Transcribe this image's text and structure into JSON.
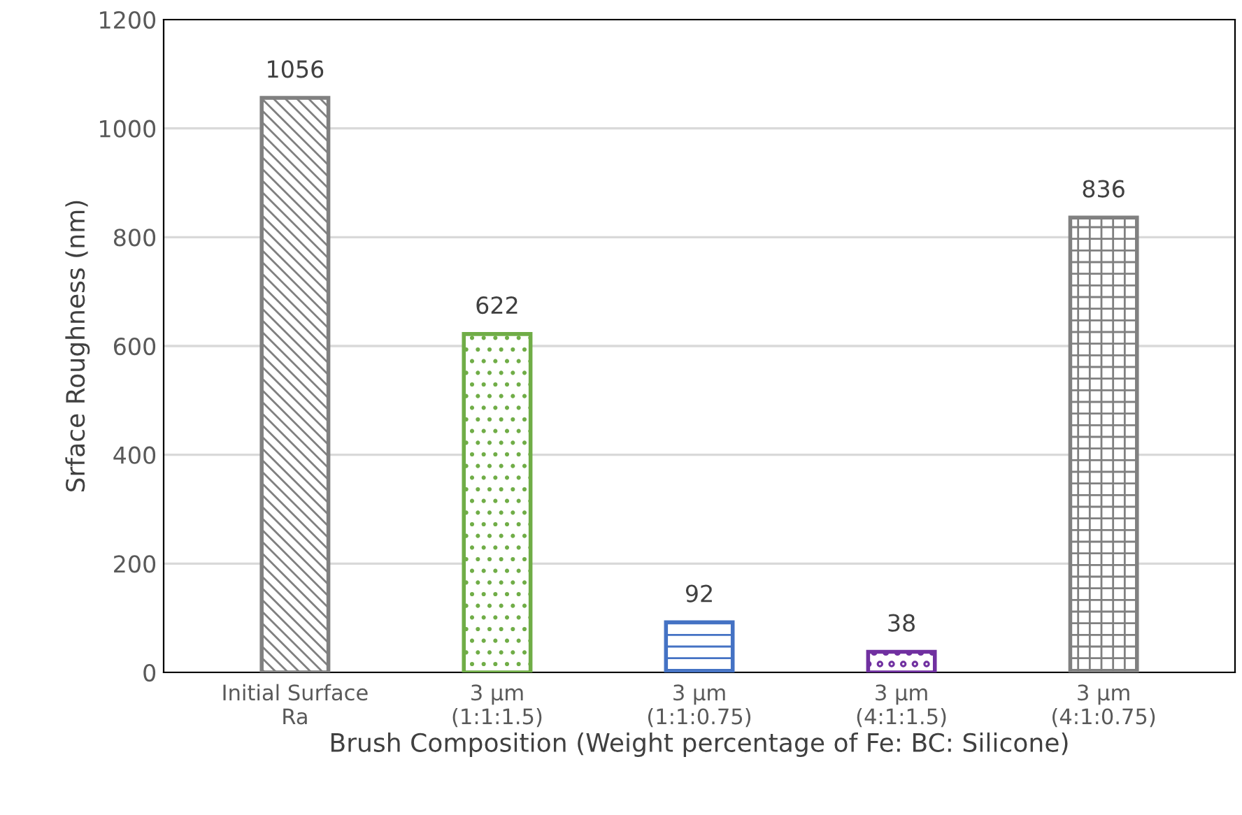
{
  "chart_data": {
    "type": "bar",
    "xlabel": "Brush Composition (Weight percentage of Fe: BC: Silicone)",
    "ylabel": "Srface Roughness (nm)",
    "categories": [
      "Initial Surface\nRa",
      "3 µm\n(1:1:1.5)",
      "3 µm\n(1:1:0.75)",
      "3 µm\n(4:1:1.5)",
      "3 µm\n(4:1:0.75)"
    ],
    "values": [
      1056,
      622,
      92,
      38,
      836
    ],
    "colors": [
      "#808080",
      "#70ad47",
      "#4472c4",
      "#7030a0",
      "#808080"
    ],
    "ylim": [
      0,
      1200
    ],
    "yticks": [
      0,
      200,
      400,
      600,
      800,
      1000,
      1200
    ],
    "grid": "y",
    "data_labels": true
  }
}
